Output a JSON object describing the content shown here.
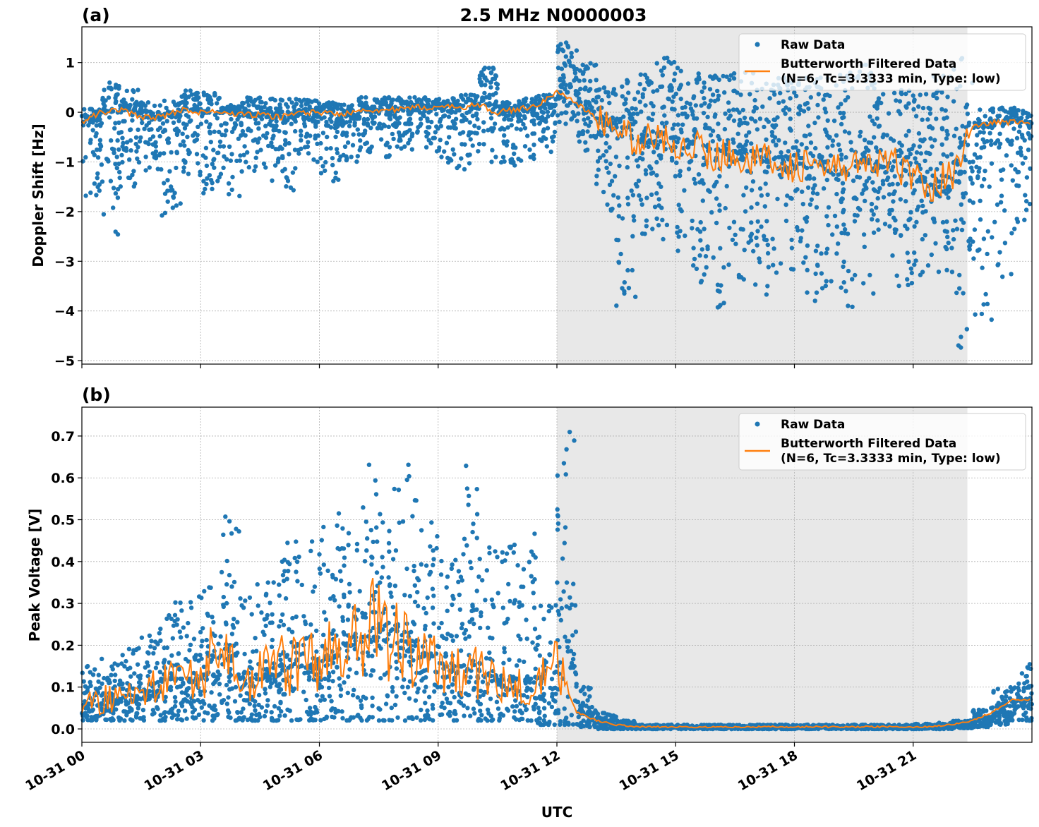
{
  "title": "2.5 MHz N0000003",
  "chart_data": [
    {
      "type": "scatter",
      "panel_label": "(a)",
      "xlabel": "",
      "ylabel": "Doppler Shift [Hz]",
      "x_unit": "hour of 10-31 UTC",
      "xlim": [
        0,
        24
      ],
      "ylim": [
        -5.07,
        1.72
      ],
      "yticks": [
        1,
        0,
        -1,
        -2,
        -3,
        -4,
        -5
      ],
      "ytick_labels": [
        "1",
        "0",
        "−1",
        "−2",
        "−3",
        "−4",
        "−5"
      ],
      "grid": true,
      "shaded_region": [
        12.0,
        22.37
      ],
      "legend_position": "top-right",
      "legend": [
        "Raw Data",
        "Butterworth Filtered Data",
        "(N=6, Tc=3.3333 min, Type: low)"
      ],
      "x": [
        0,
        0.5,
        1,
        1.5,
        2,
        2.5,
        3,
        3.5,
        4,
        4.5,
        5,
        5.5,
        6,
        6.5,
        7,
        7.5,
        8,
        8.5,
        9,
        9.5,
        10,
        10.5,
        11,
        11.5,
        12,
        12.5,
        13,
        13.5,
        14,
        14.5,
        15,
        15.5,
        16,
        16.5,
        17,
        17.5,
        18,
        18.5,
        19,
        19.5,
        20,
        20.5,
        21,
        21.5,
        22,
        22.5,
        23,
        23.5
      ],
      "series": [
        {
          "name": "Butterworth Filtered Data",
          "kind": "line",
          "values": [
            -0.2,
            0.0,
            0.05,
            -0.1,
            -0.1,
            0.05,
            0.0,
            0.0,
            -0.05,
            -0.05,
            -0.1,
            0.0,
            0.0,
            -0.05,
            0.05,
            0.05,
            0.05,
            0.1,
            0.1,
            0.1,
            0.15,
            0.0,
            0.05,
            0.15,
            0.4,
            0.2,
            -0.15,
            -0.3,
            -0.6,
            -0.5,
            -0.6,
            -0.7,
            -0.9,
            -0.8,
            -1.0,
            -0.9,
            -1.1,
            -1.0,
            -1.2,
            -1.0,
            -1.1,
            -1.0,
            -1.3,
            -1.5,
            -1.2,
            -0.3,
            -0.2,
            -0.2
          ]
        },
        {
          "name": "Raw Data",
          "kind": "scatter-envelope",
          "max": [
            0.1,
            0.6,
            0.45,
            0.2,
            0.25,
            0.45,
            0.4,
            0.15,
            0.3,
            0.3,
            0.35,
            0.25,
            0.2,
            0.15,
            0.3,
            0.3,
            0.3,
            0.3,
            0.3,
            0.35,
            0.9,
            0.2,
            0.3,
            0.35,
            1.4,
            1.0,
            0.5,
            0.7,
            0.9,
            1.1,
            0.9,
            0.85,
            0.8,
            0.8,
            0.6,
            0.7,
            0.7,
            0.7,
            0.8,
            1.0,
            0.6,
            0.5,
            0.4,
            0.8,
            1.3,
            0.1,
            0.1,
            0.1
          ],
          "min": [
            -1.7,
            -2.6,
            -1.5,
            -1.2,
            -2.1,
            -1.3,
            -1.7,
            -1.8,
            -1.2,
            -1.5,
            -1.6,
            -1.0,
            -1.4,
            -1.0,
            -0.8,
            -0.9,
            -0.8,
            -0.8,
            -1.2,
            -1.2,
            -1.0,
            -1.1,
            -1.0,
            -0.8,
            -0.3,
            -0.8,
            -2.0,
            -4.1,
            -2.5,
            -2.8,
            -3.2,
            -3.5,
            -4.0,
            -3.6,
            -3.7,
            -3.6,
            -3.8,
            -3.8,
            -4.0,
            -3.7,
            -3.4,
            -3.6,
            -3.3,
            -3.7,
            -4.75,
            -4.3,
            -3.6,
            -2.5
          ]
        }
      ]
    },
    {
      "type": "scatter",
      "panel_label": "(b)",
      "xlabel": "UTC",
      "ylabel": "Peak Voltage [V]",
      "x_unit": "hour of 10-31 UTC",
      "xlim": [
        0,
        24
      ],
      "ylim": [
        -0.032,
        0.769
      ],
      "yticks": [
        0.0,
        0.1,
        0.2,
        0.3,
        0.4,
        0.5,
        0.6,
        0.7
      ],
      "ytick_labels": [
        "0.0",
        "0.1",
        "0.2",
        "0.3",
        "0.4",
        "0.5",
        "0.6",
        "0.7"
      ],
      "xtick_labels": [
        "10-31 00",
        "10-31 03",
        "10-31 06",
        "10-31 09",
        "10-31 12",
        "10-31 15",
        "10-31 18",
        "10-31 21"
      ],
      "xticks": [
        0,
        3,
        6,
        9,
        12,
        15,
        18,
        21
      ],
      "grid": true,
      "shaded_region": [
        12.0,
        22.37
      ],
      "legend_position": "top-right",
      "legend": [
        "Raw Data",
        "Butterworth Filtered Data",
        "(N=6, Tc=3.3333 min, Type: low)"
      ],
      "x": [
        0,
        0.5,
        1,
        1.5,
        2,
        2.5,
        3,
        3.5,
        4,
        4.5,
        5,
        5.5,
        6,
        6.5,
        7,
        7.5,
        8,
        8.5,
        9,
        9.5,
        10,
        10.5,
        11,
        11.5,
        12,
        12.5,
        13,
        13.5,
        14,
        14.5,
        15,
        15.5,
        16,
        16.5,
        17,
        17.5,
        18,
        18.5,
        19,
        19.5,
        20,
        20.5,
        21,
        21.5,
        22,
        22.5,
        23,
        23.5
      ],
      "series": [
        {
          "name": "Butterworth Filtered Data",
          "kind": "line",
          "values": [
            0.06,
            0.07,
            0.08,
            0.09,
            0.12,
            0.12,
            0.13,
            0.2,
            0.12,
            0.13,
            0.15,
            0.15,
            0.18,
            0.2,
            0.22,
            0.25,
            0.2,
            0.18,
            0.15,
            0.15,
            0.13,
            0.12,
            0.12,
            0.1,
            0.15,
            0.04,
            0.02,
            0.01,
            0.005,
            0.005,
            0.005,
            0.005,
            0.005,
            0.005,
            0.005,
            0.005,
            0.005,
            0.005,
            0.005,
            0.005,
            0.005,
            0.005,
            0.005,
            0.006,
            0.01,
            0.02,
            0.04,
            0.07
          ]
        },
        {
          "name": "Raw Data",
          "kind": "scatter-envelope",
          "max": [
            0.15,
            0.17,
            0.2,
            0.24,
            0.32,
            0.32,
            0.35,
            0.58,
            0.35,
            0.35,
            0.45,
            0.45,
            0.54,
            0.48,
            0.64,
            0.63,
            0.67,
            0.5,
            0.45,
            0.64,
            0.45,
            0.45,
            0.47,
            0.3,
            0.73,
            0.1,
            0.04,
            0.02,
            0.01,
            0.01,
            0.01,
            0.01,
            0.01,
            0.01,
            0.01,
            0.01,
            0.01,
            0.01,
            0.01,
            0.01,
            0.01,
            0.01,
            0.012,
            0.015,
            0.02,
            0.05,
            0.1,
            0.16
          ],
          "min": [
            0.02,
            0.02,
            0.02,
            0.02,
            0.02,
            0.02,
            0.02,
            0.02,
            0.02,
            0.02,
            0.02,
            0.02,
            0.02,
            0.02,
            0.02,
            0.02,
            0.02,
            0.02,
            0.02,
            0.02,
            0.02,
            0.02,
            0.02,
            0.01,
            0.01,
            0.005,
            0.0,
            0.0,
            0.0,
            0.0,
            0.0,
            0.0,
            0.0,
            0.0,
            0.0,
            0.0,
            0.0,
            0.0,
            0.0,
            0.0,
            0.0,
            0.0,
            0.0,
            0.0,
            0.002,
            0.005,
            0.01,
            0.02
          ]
        }
      ]
    }
  ],
  "colors": {
    "raw": "#1f77b4",
    "filtered": "#ff7f0e",
    "shade": "#e8e8e8"
  }
}
